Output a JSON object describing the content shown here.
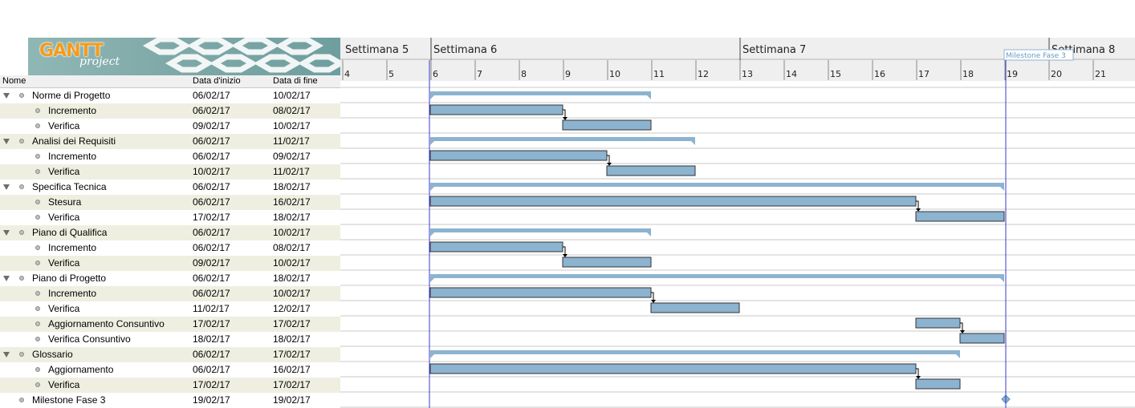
{
  "logo": {
    "title": "GANTT",
    "subtitle": "project"
  },
  "columns": {
    "name": "Nome",
    "start": "Data d'inizio",
    "end": "Data di fine"
  },
  "timeline": {
    "weeks": [
      {
        "label": "Settimana 5",
        "day": 4
      },
      {
        "label": "Settimana 6",
        "day": 6
      },
      {
        "label": "Settimana 7",
        "day": 13
      },
      {
        "label": "Settimana 8",
        "day": 20
      }
    ],
    "days": [
      "4",
      "5",
      "6",
      "7",
      "8",
      "9",
      "10",
      "11",
      "12",
      "13",
      "14",
      "15",
      "16",
      "17",
      "18",
      "19",
      "20",
      "21"
    ],
    "today_day": 6,
    "milestone_flag": "Milestone Fase 3",
    "colors": {
      "bar": "#8cb3d0",
      "bar_border": "#333333",
      "grid": "#c8c8c8",
      "today_line": "#3a3ad0"
    }
  },
  "tasks": [
    {
      "name": "Norme di Progetto",
      "start": "06/02/17",
      "end": "10/02/17",
      "level": 0,
      "type": "summary",
      "s": 6,
      "e": 11
    },
    {
      "name": "Incremento",
      "start": "06/02/17",
      "end": "08/02/17",
      "level": 1,
      "type": "task",
      "s": 6,
      "e": 9,
      "link": true
    },
    {
      "name": "Verifica",
      "start": "09/02/17",
      "end": "10/02/17",
      "level": 1,
      "type": "task",
      "s": 9,
      "e": 11
    },
    {
      "name": "Analisi dei Requisiti",
      "start": "06/02/17",
      "end": "11/02/17",
      "level": 0,
      "type": "summary",
      "s": 6,
      "e": 12
    },
    {
      "name": "Incremento",
      "start": "06/02/17",
      "end": "09/02/17",
      "level": 1,
      "type": "task",
      "s": 6,
      "e": 10,
      "link": true
    },
    {
      "name": "Verifica",
      "start": "10/02/17",
      "end": "11/02/17",
      "level": 1,
      "type": "task",
      "s": 10,
      "e": 12
    },
    {
      "name": "Specifica Tecnica",
      "start": "06/02/17",
      "end": "18/02/17",
      "level": 0,
      "type": "summary",
      "s": 6,
      "e": 19
    },
    {
      "name": "Stesura",
      "start": "06/02/17",
      "end": "16/02/17",
      "level": 1,
      "type": "task",
      "s": 6,
      "e": 17,
      "link": true
    },
    {
      "name": "Verifica",
      "start": "17/02/17",
      "end": "18/02/17",
      "level": 1,
      "type": "task",
      "s": 17,
      "e": 19
    },
    {
      "name": "Piano di Qualifica",
      "start": "06/02/17",
      "end": "10/02/17",
      "level": 0,
      "type": "summary",
      "s": 6,
      "e": 11
    },
    {
      "name": "Incremento",
      "start": "06/02/17",
      "end": "08/02/17",
      "level": 1,
      "type": "task",
      "s": 6,
      "e": 9,
      "link": true
    },
    {
      "name": "Verifica",
      "start": "09/02/17",
      "end": "10/02/17",
      "level": 1,
      "type": "task",
      "s": 9,
      "e": 11
    },
    {
      "name": "Piano di Progetto",
      "start": "06/02/17",
      "end": "18/02/17",
      "level": 0,
      "type": "summary",
      "s": 6,
      "e": 19
    },
    {
      "name": "Incremento",
      "start": "06/02/17",
      "end": "10/02/17",
      "level": 1,
      "type": "task",
      "s": 6,
      "e": 11,
      "link": true
    },
    {
      "name": "Verifica",
      "start": "11/02/17",
      "end": "12/02/17",
      "level": 1,
      "type": "task",
      "s": 11,
      "e": 13
    },
    {
      "name": "Aggiornamento Consuntivo",
      "start": "17/02/17",
      "end": "17/02/17",
      "level": 1,
      "type": "task",
      "s": 17,
      "e": 18,
      "link": true
    },
    {
      "name": "Verifica Consuntivo",
      "start": "18/02/17",
      "end": "18/02/17",
      "level": 1,
      "type": "task",
      "s": 18,
      "e": 19
    },
    {
      "name": "Glossario",
      "start": "06/02/17",
      "end": "17/02/17",
      "level": 0,
      "type": "summary",
      "s": 6,
      "e": 18
    },
    {
      "name": "Aggiornamento",
      "start": "06/02/17",
      "end": "16/02/17",
      "level": 1,
      "type": "task",
      "s": 6,
      "e": 17,
      "link": true
    },
    {
      "name": "Verifica",
      "start": "17/02/17",
      "end": "17/02/17",
      "level": 1,
      "type": "task",
      "s": 17,
      "e": 18
    },
    {
      "name": "Milestone Fase 3",
      "start": "19/02/17",
      "end": "19/02/17",
      "level": 0,
      "type": "milestone",
      "s": 19,
      "e": 19
    }
  ]
}
